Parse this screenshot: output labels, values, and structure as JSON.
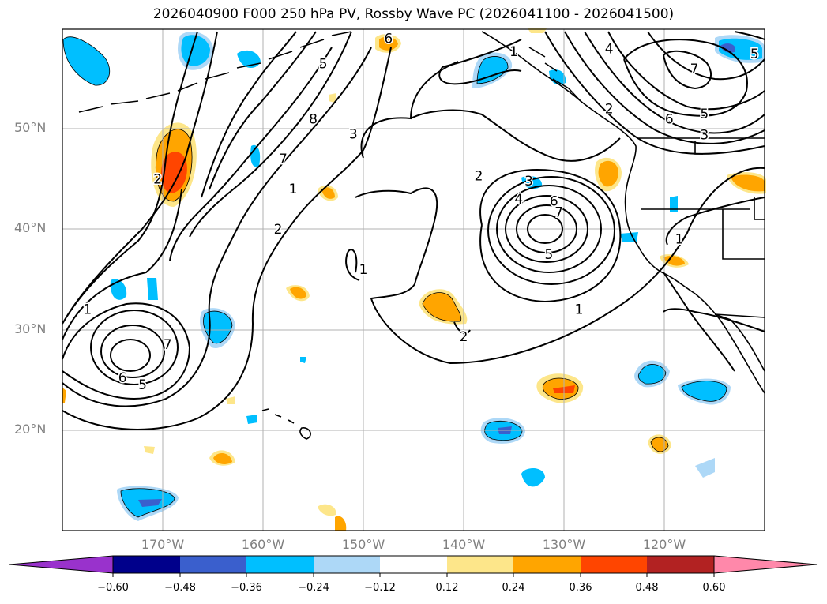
{
  "title": "2026040900 F000 250 hPa PV, Rossby Wave PC (2026041100 - 2026041500)",
  "map": {
    "lon_range": [
      -180,
      -110
    ],
    "lat_range": [
      10,
      60
    ],
    "lat_labels": [
      "50°N",
      "40°N",
      "30°N",
      "20°N"
    ],
    "lon_labels": [
      "170°W",
      "160°W",
      "150°W",
      "140°W",
      "130°W",
      "120°W"
    ]
  },
  "colorbar": {
    "ticks": [
      "−0.60",
      "−0.48",
      "−0.36",
      "−0.24",
      "−0.12",
      "0.12",
      "0.24",
      "0.36",
      "0.48",
      "0.60"
    ],
    "colors": [
      "#9932cc",
      "#00008b",
      "#3a5fcd",
      "#00bfff",
      "#add8f7",
      "#ffffff",
      "#fde68a",
      "#ffa500",
      "#ff4500",
      "#b22222",
      "#ff88aa"
    ]
  },
  "contour_labels": [
    {
      "text": "1",
      "lon": -177.5,
      "lat": 32.0
    },
    {
      "text": "6",
      "lon": -174.0,
      "lat": 25.2
    },
    {
      "text": "5",
      "lon": -172.0,
      "lat": 24.5
    },
    {
      "text": "7",
      "lon": -169.5,
      "lat": 28.5
    },
    {
      "text": "2",
      "lon": -170.5,
      "lat": 45.0
    },
    {
      "text": "2",
      "lon": -158.5,
      "lat": 40.0
    },
    {
      "text": "1",
      "lon": -157.0,
      "lat": 44.0
    },
    {
      "text": "7",
      "lon": -158.0,
      "lat": 47.0
    },
    {
      "text": "8",
      "lon": -155.0,
      "lat": 51.0
    },
    {
      "text": "3",
      "lon": -151.0,
      "lat": 49.5
    },
    {
      "text": "5",
      "lon": -154.0,
      "lat": 56.5
    },
    {
      "text": "6",
      "lon": -147.5,
      "lat": 59.0
    },
    {
      "text": "1",
      "lon": -150.0,
      "lat": 36.0
    },
    {
      "text": "2",
      "lon": -138.5,
      "lat": 45.3
    },
    {
      "text": "3",
      "lon": -133.5,
      "lat": 44.8
    },
    {
      "text": "4",
      "lon": -134.5,
      "lat": 43.0
    },
    {
      "text": "6",
      "lon": -131.0,
      "lat": 42.8
    },
    {
      "text": "7",
      "lon": -130.5,
      "lat": 41.7
    },
    {
      "text": "5",
      "lon": -131.5,
      "lat": 37.5
    },
    {
      "text": "2",
      "lon": -140.0,
      "lat": 29.3
    },
    {
      "text": "1",
      "lon": -128.5,
      "lat": 32.0
    },
    {
      "text": "1",
      "lon": -135.0,
      "lat": 57.7
    },
    {
      "text": "2",
      "lon": -125.5,
      "lat": 52.0
    },
    {
      "text": "4",
      "lon": -125.5,
      "lat": 58.0
    },
    {
      "text": "7",
      "lon": -117.0,
      "lat": 56.0
    },
    {
      "text": "6",
      "lon": -119.5,
      "lat": 51.0
    },
    {
      "text": "5",
      "lon": -116.0,
      "lat": 51.5
    },
    {
      "text": "3",
      "lon": -116.0,
      "lat": 49.4
    },
    {
      "text": "1",
      "lon": -118.5,
      "lat": 39.0
    },
    {
      "text": "5",
      "lon": -111.0,
      "lat": 57.5
    }
  ]
}
